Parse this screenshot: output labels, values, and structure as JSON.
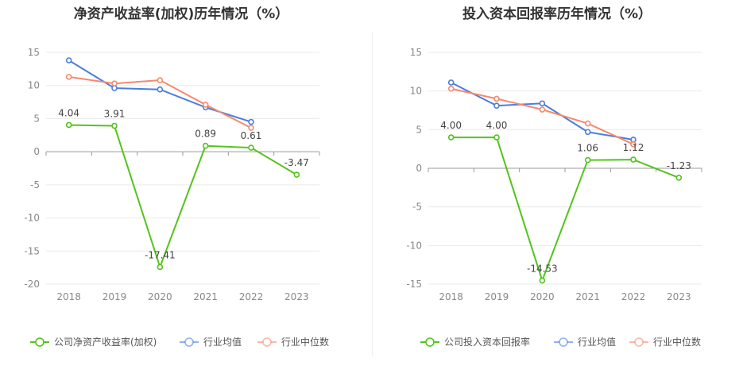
{
  "chart_data": [
    {
      "type": "line",
      "title": "净资产收益率(加权)历年情况（%）",
      "categories": [
        "2018",
        "2019",
        "2020",
        "2021",
        "2022",
        "2023"
      ],
      "y_ticks": [
        "15",
        "10",
        "5",
        "0",
        "-5",
        "-10",
        "-15",
        "-20"
      ],
      "ylim": [
        -20,
        15
      ],
      "series": [
        {
          "name": "公司净资产收益率(加权)",
          "color": "#52c41a",
          "values": [
            4.04,
            3.91,
            -17.41,
            0.89,
            0.61,
            -3.47
          ],
          "labels": [
            "4.04",
            "3.91",
            "-17.41",
            "0.89",
            "0.61",
            "-3.47"
          ]
        },
        {
          "name": "行业均值",
          "color": "#4a7de2",
          "values": [
            13.8,
            9.6,
            9.4,
            6.7,
            4.5,
            null
          ]
        },
        {
          "name": "行业中位数",
          "color": "#f7896b",
          "values": [
            11.3,
            10.3,
            10.8,
            7.1,
            3.6,
            null
          ]
        }
      ]
    },
    {
      "type": "line",
      "title": "投入资本回报率历年情况（%）",
      "categories": [
        "2018",
        "2019",
        "2020",
        "2021",
        "2022",
        "2023"
      ],
      "y_ticks": [
        "15",
        "10",
        "5",
        "0",
        "-5",
        "-10",
        "-15"
      ],
      "ylim": [
        -15,
        15
      ],
      "series": [
        {
          "name": "公司投入资本回报率",
          "color": "#52c41a",
          "values": [
            4.0,
            4.0,
            -14.53,
            1.06,
            1.12,
            -1.23
          ],
          "labels": [
            "4.00",
            "4.00",
            "-14.53",
            "1.06",
            "1.12",
            "-1.23"
          ]
        },
        {
          "name": "行业均值",
          "color": "#4a7de2",
          "values": [
            11.1,
            8.1,
            8.4,
            4.7,
            3.7,
            null
          ]
        },
        {
          "name": "行业中位数",
          "color": "#f7896b",
          "values": [
            10.3,
            9.0,
            7.6,
            5.8,
            3.1,
            null
          ]
        }
      ]
    }
  ]
}
